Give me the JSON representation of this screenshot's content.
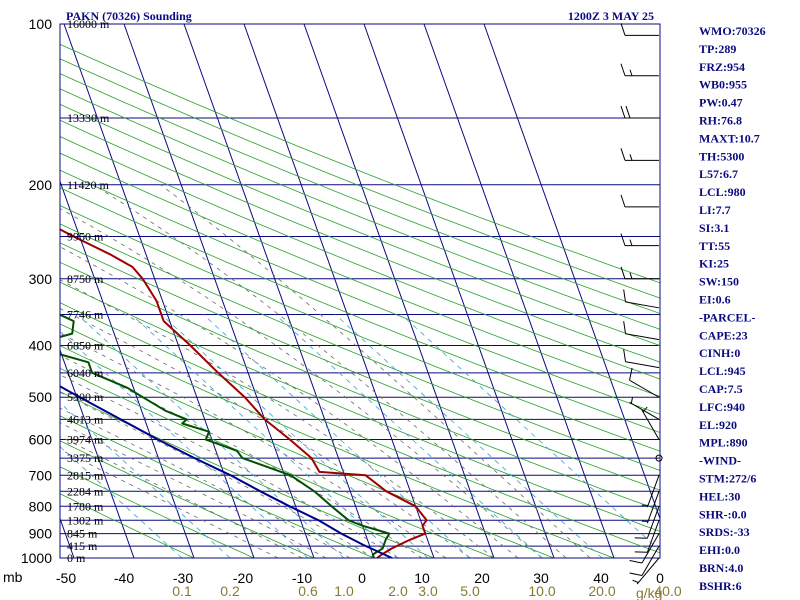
{
  "header": {
    "station": "PAKN (70326) Sounding",
    "time": "1200Z  3 MAY 25"
  },
  "chart_data": {
    "type": "line",
    "title": "PAKN (70326) Sounding",
    "xlabel": "",
    "ylabel": "mb",
    "pressure_ticks": [
      100,
      200,
      300,
      400,
      500,
      600,
      700,
      800,
      900,
      1000
    ],
    "temp_ticks": [
      -50,
      -40,
      -30,
      -20,
      -10,
      0,
      10,
      20,
      30,
      40,
      0
    ],
    "mixing_ratio_ticks": [
      {
        "label": "0.1",
        "t1000": -32
      },
      {
        "label": "0.2",
        "t1000": -24
      },
      {
        "label": "0.6",
        "t1000": -11
      },
      {
        "label": "1.0",
        "t1000": -5
      },
      {
        "label": "2.0",
        "t1000": 4
      },
      {
        "label": "3.0",
        "t1000": 9
      },
      {
        "label": "5.0",
        "t1000": 16
      },
      {
        "label": "10.0",
        "t1000": 28
      },
      {
        "label": "20.0",
        "t1000": 38
      },
      {
        "label": "40.0",
        "t1000": 49
      }
    ],
    "mixing_ratio_unit": "g/kg",
    "height_levels": [
      {
        "p": 100,
        "label": "16000 m"
      },
      {
        "p": 150,
        "label": "13330 m"
      },
      {
        "p": 200,
        "label": "11420 m"
      },
      {
        "p": 250,
        "label": "9950 m"
      },
      {
        "p": 300,
        "label": "8750 m"
      },
      {
        "p": 350,
        "label": "7746 m"
      },
      {
        "p": 400,
        "label": "6850 m"
      },
      {
        "p": 450,
        "label": "6040 m"
      },
      {
        "p": 500,
        "label": "5300 m"
      },
      {
        "p": 550,
        "label": "4613 m"
      },
      {
        "p": 600,
        "label": "3974 m"
      },
      {
        "p": 650,
        "label": "3375 m"
      },
      {
        "p": 700,
        "label": "2815 m"
      },
      {
        "p": 750,
        "label": "2284 m"
      },
      {
        "p": 800,
        "label": "1780 m"
      },
      {
        "p": 850,
        "label": "1302 m"
      },
      {
        "p": 900,
        "label": "845 m"
      },
      {
        "p": 950,
        "label": "415 m"
      },
      {
        "p": 1000,
        "label": "0 m"
      }
    ],
    "series": [
      {
        "name": "Temperature",
        "color": "#a00000",
        "points": [
          [
            1000,
            0.5
          ],
          [
            985,
            1.5
          ],
          [
            960,
            3.5
          ],
          [
            925,
            7
          ],
          [
            900,
            10
          ],
          [
            870,
            10
          ],
          [
            850,
            11
          ],
          [
            800,
            10
          ],
          [
            750,
            6
          ],
          [
            700,
            3.5
          ],
          [
            690,
            -4
          ],
          [
            650,
            -4.5
          ],
          [
            600,
            -7
          ],
          [
            550,
            -10
          ],
          [
            500,
            -12
          ],
          [
            450,
            -15
          ],
          [
            400,
            -18
          ],
          [
            360,
            -21
          ],
          [
            330,
            -21
          ],
          [
            300,
            -22
          ],
          [
            285,
            -23
          ],
          [
            270,
            -26
          ],
          [
            250,
            -31
          ],
          [
            230,
            -36
          ],
          [
            210,
            -41
          ],
          [
            200,
            -43
          ],
          [
            180,
            -44
          ],
          [
            160,
            -45
          ],
          [
            150,
            -47
          ],
          [
            130,
            -50
          ],
          [
            100,
            -54
          ]
        ]
      },
      {
        "name": "Dewpoint",
        "color": "#005000",
        "points": [
          [
            1000,
            0
          ],
          [
            985,
            0
          ],
          [
            960,
            2
          ],
          [
            925,
            3
          ],
          [
            900,
            4
          ],
          [
            870,
            0
          ],
          [
            850,
            -2
          ],
          [
            800,
            -4
          ],
          [
            750,
            -6
          ],
          [
            700,
            -9
          ],
          [
            650,
            -16
          ],
          [
            630,
            -16.5
          ],
          [
            620,
            -18
          ],
          [
            600,
            -21
          ],
          [
            580,
            -20
          ],
          [
            560,
            -24
          ],
          [
            550,
            -23
          ],
          [
            530,
            -26
          ],
          [
            500,
            -29
          ],
          [
            480,
            -31
          ],
          [
            450,
            -36
          ],
          [
            430,
            -36
          ],
          [
            400,
            -45
          ],
          [
            380,
            -37
          ],
          [
            360,
            -36
          ],
          [
            350,
            -38
          ],
          [
            330,
            -38
          ],
          [
            300,
            -40
          ],
          [
            280,
            -43
          ],
          [
            250,
            -53
          ],
          [
            240,
            -53
          ],
          [
            200,
            -57
          ],
          [
            150,
            -64
          ],
          [
            120,
            -70
          ],
          [
            100,
            -74
          ]
        ]
      },
      {
        "name": "Parcel",
        "color": "#00008c",
        "points": [
          [
            1000,
            3
          ],
          [
            945,
            -1
          ],
          [
            900,
            -4
          ],
          [
            850,
            -7
          ],
          [
            800,
            -11
          ],
          [
            750,
            -15
          ],
          [
            700,
            -19
          ],
          [
            650,
            -24
          ],
          [
            600,
            -29
          ],
          [
            550,
            -34
          ],
          [
            500,
            -39.5
          ],
          [
            450,
            -45.5
          ],
          [
            400,
            -52
          ],
          [
            350,
            -59.5
          ],
          [
            300,
            -67
          ],
          [
            250,
            -75.5
          ],
          [
            200,
            -85
          ],
          [
            150,
            -96
          ],
          [
            120,
            -104
          ],
          [
            110,
            -106
          ]
        ]
      }
    ],
    "wind_barbs": [
      {
        "p": 105,
        "dir": 270,
        "spd": 10
      },
      {
        "p": 125,
        "dir": 270,
        "spd": 15
      },
      {
        "p": 150,
        "dir": 270,
        "spd": 20
      },
      {
        "p": 180,
        "dir": 270,
        "spd": 15
      },
      {
        "p": 220,
        "dir": 270,
        "spd": 10
      },
      {
        "p": 260,
        "dir": 270,
        "spd": 15
      },
      {
        "p": 300,
        "dir": 270,
        "spd": 15
      },
      {
        "p": 340,
        "dir": 280,
        "spd": 10
      },
      {
        "p": 390,
        "dir": 280,
        "spd": 10
      },
      {
        "p": 440,
        "dir": 280,
        "spd": 10
      },
      {
        "p": 500,
        "dir": 300,
        "spd": 10
      },
      {
        "p": 550,
        "dir": 300,
        "spd": 5
      },
      {
        "p": 600,
        "dir": 330,
        "spd": 5
      },
      {
        "p": 650,
        "dir": 0,
        "spd": 0
      },
      {
        "p": 700,
        "dir": 200,
        "spd": 5
      },
      {
        "p": 750,
        "dir": 200,
        "spd": 5
      },
      {
        "p": 800,
        "dir": 200,
        "spd": 10
      },
      {
        "p": 850,
        "dir": 200,
        "spd": 10
      },
      {
        "p": 900,
        "dir": 210,
        "spd": 10
      },
      {
        "p": 950,
        "dir": 210,
        "spd": 10
      },
      {
        "p": 1000,
        "dir": 220,
        "spd": 5
      }
    ]
  },
  "indices": [
    "WMO:70326",
    "TP:289",
    "FRZ:954",
    "WB0:955",
    "PW:0.47",
    "RH:76.8",
    "MAXT:10.7",
    "TH:5300",
    "L57:6.7",
    "LCL:980",
    "LI:7.7",
    "SI:3.1",
    "TT:55",
    "KI:25",
    "SW:150",
    "EI:0.6",
    "-PARCEL-",
    "CAPE:23",
    "CINH:0",
    "LCL:945",
    "CAP:7.5",
    "LFC:940",
    "EL:920",
    "MPL:890",
    "-WIND-",
    "STM:272/6",
    "HEL:30",
    "SHR-:0.0",
    "SRDS:-33",
    "EHI:0.0",
    "BRN:4.0",
    "BSHR:6"
  ]
}
